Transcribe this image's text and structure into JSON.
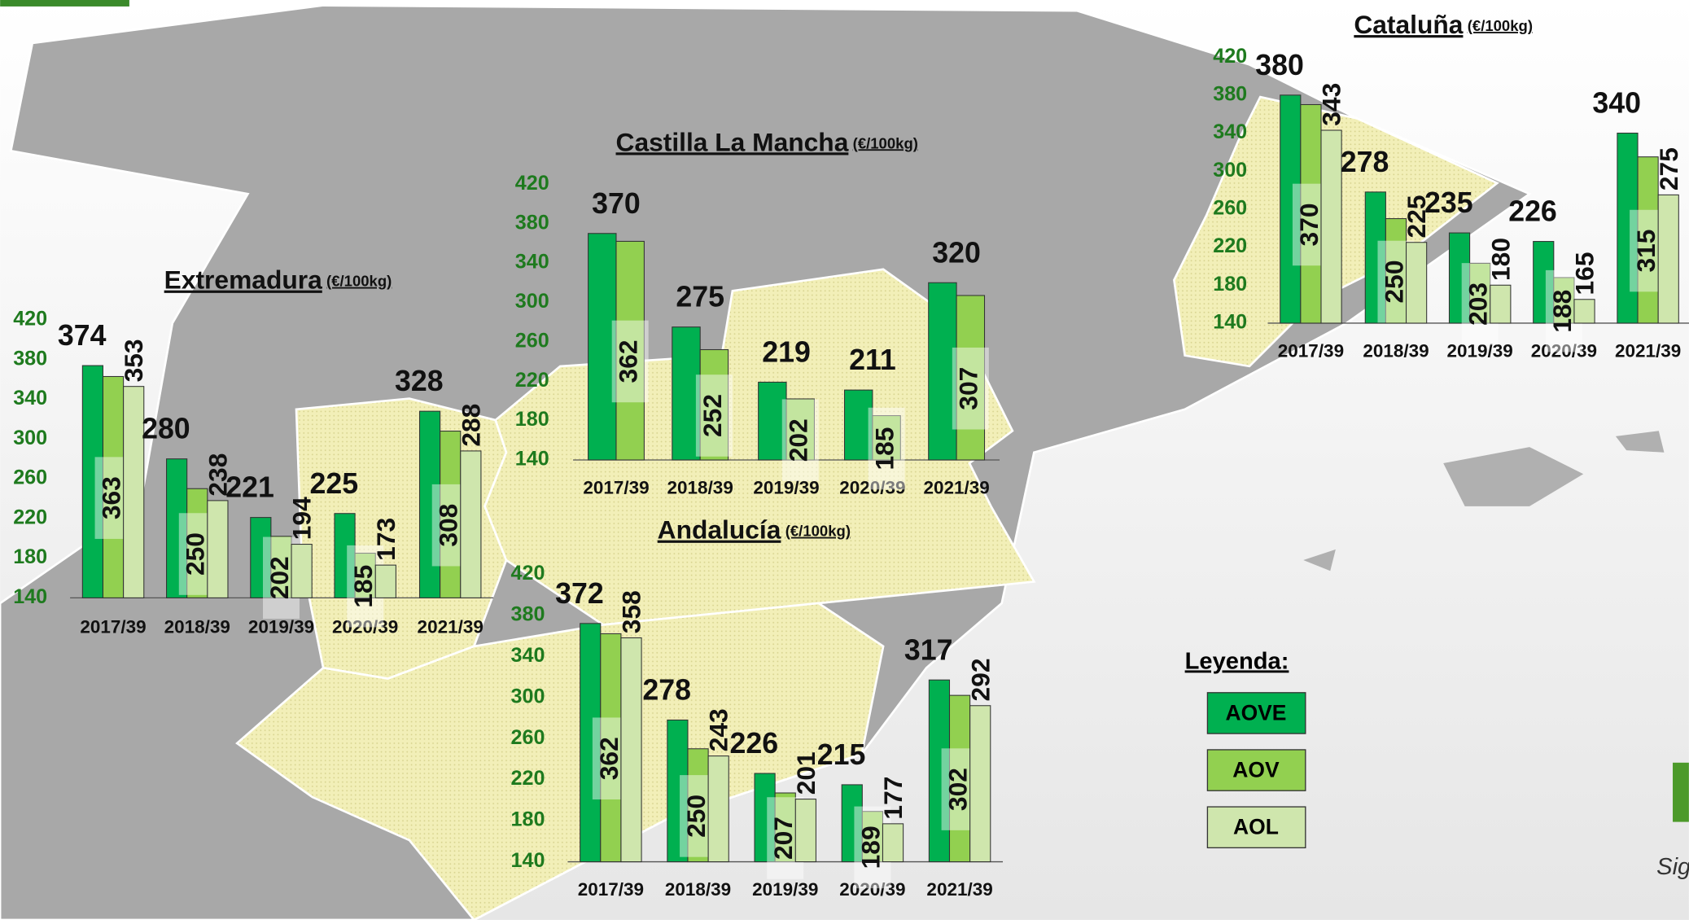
{
  "chart_data": [
    {
      "type": "bar",
      "title": "Extremadura",
      "subtitle": "(€/100kg)",
      "categories": [
        "2017/39",
        "2018/39",
        "2019/39",
        "2020/39",
        "2021/39"
      ],
      "series": [
        {
          "name": "AOVE",
          "color": "#00b050",
          "values": [
            374,
            280,
            221,
            225,
            328
          ]
        },
        {
          "name": "AOV",
          "color": "#92d050",
          "values": [
            363,
            250,
            202,
            185,
            308
          ]
        },
        {
          "name": "AOL",
          "color": "#cfe6ad",
          "values": [
            353,
            238,
            194,
            173,
            288
          ]
        }
      ],
      "ylim": [
        140,
        420
      ],
      "yticks": [
        140,
        180,
        220,
        260,
        300,
        340,
        380,
        420
      ]
    },
    {
      "type": "bar",
      "title": "Castilla La Mancha",
      "subtitle": "(€/100kg)",
      "categories": [
        "2017/39",
        "2018/39",
        "2019/39",
        "2020/39",
        "2021/39"
      ],
      "series": [
        {
          "name": "AOVE",
          "color": "#00b050",
          "values": [
            370,
            275,
            219,
            211,
            320
          ]
        },
        {
          "name": "AOV",
          "color": "#92d050",
          "values": [
            362,
            252,
            202,
            185,
            307
          ]
        }
      ],
      "ylim": [
        140,
        420
      ],
      "yticks": [
        140,
        180,
        220,
        260,
        300,
        340,
        380,
        420
      ]
    },
    {
      "type": "bar",
      "title": "Andalucía",
      "subtitle": "(€/100kg)",
      "categories": [
        "2017/39",
        "2018/39",
        "2019/39",
        "2020/39",
        "2021/39"
      ],
      "series": [
        {
          "name": "AOVE",
          "color": "#00b050",
          "values": [
            372,
            278,
            226,
            215,
            317
          ]
        },
        {
          "name": "AOV",
          "color": "#92d050",
          "values": [
            362,
            250,
            207,
            189,
            302
          ]
        },
        {
          "name": "AOL",
          "color": "#cfe6ad",
          "values": [
            358,
            243,
            201,
            177,
            292
          ]
        }
      ],
      "ylim": [
        140,
        420
      ],
      "yticks": [
        140,
        180,
        220,
        260,
        300,
        340,
        380,
        420
      ]
    },
    {
      "type": "bar",
      "title": "Cataluña",
      "subtitle": "(€/100kg)",
      "categories": [
        "2017/39",
        "2018/39",
        "2019/39",
        "2020/39",
        "2021/39"
      ],
      "series": [
        {
          "name": "AOVE",
          "color": "#00b050",
          "values": [
            380,
            278,
            235,
            226,
            340
          ]
        },
        {
          "name": "AOV",
          "color": "#92d050",
          "values": [
            370,
            250,
            203,
            188,
            315
          ]
        },
        {
          "name": "AOL",
          "color": "#cfe6ad",
          "values": [
            343,
            225,
            180,
            165,
            275
          ]
        }
      ],
      "ylim": [
        140,
        420
      ],
      "yticks": [
        140,
        180,
        220,
        260,
        300,
        340,
        380,
        420
      ]
    }
  ],
  "legend_title": "Leyenda:",
  "footer_text": "Sig"
}
